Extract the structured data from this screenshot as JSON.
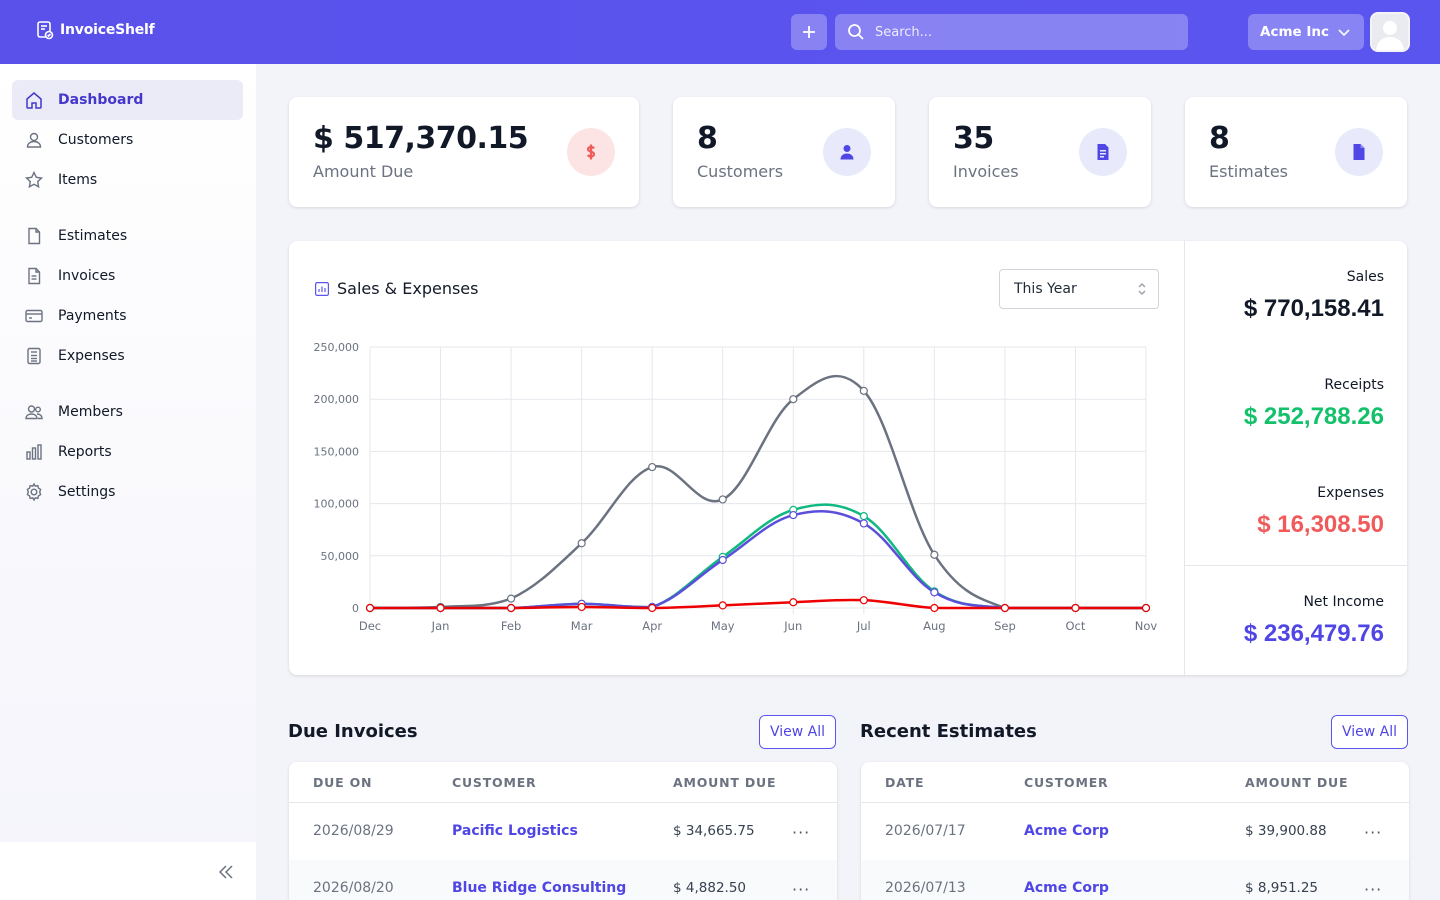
{
  "header": {
    "logo_text": "InvoiceShelf",
    "search_placeholder": "Search...",
    "company": "Acme Inc"
  },
  "sidebar": {
    "items": [
      {
        "label": "Dashboard",
        "icon": "home-icon",
        "active": true
      },
      {
        "label": "Customers",
        "icon": "user-icon"
      },
      {
        "label": "Items",
        "icon": "star-icon"
      },
      {
        "label": "Estimates",
        "icon": "document-icon"
      },
      {
        "label": "Invoices",
        "icon": "document-text-icon"
      },
      {
        "label": "Payments",
        "icon": "credit-card-icon"
      },
      {
        "label": "Expenses",
        "icon": "calculator-icon"
      },
      {
        "label": "Members",
        "icon": "users-icon"
      },
      {
        "label": "Reports",
        "icon": "chart-bar-icon"
      },
      {
        "label": "Settings",
        "icon": "cog-icon"
      }
    ]
  },
  "stats": {
    "amount_due": {
      "value": "$ 517,370.15",
      "label": "Amount Due"
    },
    "customers": {
      "value": "8",
      "label": "Customers"
    },
    "invoices": {
      "value": "35",
      "label": "Invoices"
    },
    "estimates": {
      "value": "8",
      "label": "Estimates"
    }
  },
  "colors": {
    "accent": "#5851ec",
    "sales_line": "#6b7280",
    "receipts_line": "#10b981",
    "expenses_line": "#ef0000",
    "net_income_line": "#5b4fd9",
    "receipts_text": "#14c16b",
    "expenses_text": "#f05a5a",
    "net_income_text": "#4f46e5"
  },
  "chart": {
    "title": "Sales & Expenses",
    "period": "This Year"
  },
  "chart_data": {
    "type": "line",
    "categories": [
      "Dec",
      "Jan",
      "Feb",
      "Mar",
      "Apr",
      "May",
      "Jun",
      "Jul",
      "Aug",
      "Sep",
      "Oct",
      "Nov"
    ],
    "ylim": [
      0,
      250000
    ],
    "yticks": [
      "250,000",
      "200,000",
      "150,000",
      "100,000",
      "50,000",
      "0"
    ],
    "ytick_values": [
      250000,
      200000,
      150000,
      100000,
      50000,
      0
    ],
    "grid": true,
    "series": [
      {
        "values": [
          0,
          1000,
          9000,
          62000,
          135000,
          104000,
          200000,
          208000,
          51000,
          0,
          0,
          0
        ],
        "color": "#6b7280"
      },
      {
        "values": [
          0,
          0,
          0,
          4000,
          1000,
          49000,
          94000,
          88000,
          16000,
          0,
          0,
          0
        ],
        "color": "#10b981"
      },
      {
        "values": [
          0,
          0,
          0,
          4000,
          1000,
          46000,
          89000,
          81000,
          15000,
          0,
          0,
          0
        ],
        "color": "#5b4fd9"
      },
      {
        "values": [
          0,
          0,
          0,
          1000,
          0,
          2500,
          5500,
          7500,
          0,
          0,
          0,
          0
        ],
        "color": "#ef0000"
      }
    ]
  },
  "summary": {
    "sales_label": "Sales",
    "sales_value": "$ 770,158.41",
    "receipts_label": "Receipts",
    "receipts_value": "$ 252,788.26",
    "expenses_label": "Expenses",
    "expenses_value": "$ 16,308.50",
    "net_label": "Net Income",
    "net_value": "$ 236,479.76"
  },
  "due_invoices": {
    "title": "Due Invoices",
    "view_all": "View All",
    "columns": [
      "DUE ON",
      "CUSTOMER",
      "AMOUNT DUE"
    ],
    "rows": [
      {
        "date": "2026/08/29",
        "customer": "Pacific Logistics",
        "amount": "$ 34,665.75"
      },
      {
        "date": "2026/08/20",
        "customer": "Blue Ridge Consulting",
        "amount": "$ 4,882.50"
      }
    ]
  },
  "recent_estimates": {
    "title": "Recent Estimates",
    "view_all": "View All",
    "columns": [
      "DATE",
      "CUSTOMER",
      "AMOUNT DUE"
    ],
    "rows": [
      {
        "date": "2026/07/17",
        "customer": "Acme Corp",
        "amount": "$ 39,900.88"
      },
      {
        "date": "2026/07/13",
        "customer": "Acme Corp",
        "amount": "$ 8,951.25"
      }
    ]
  }
}
